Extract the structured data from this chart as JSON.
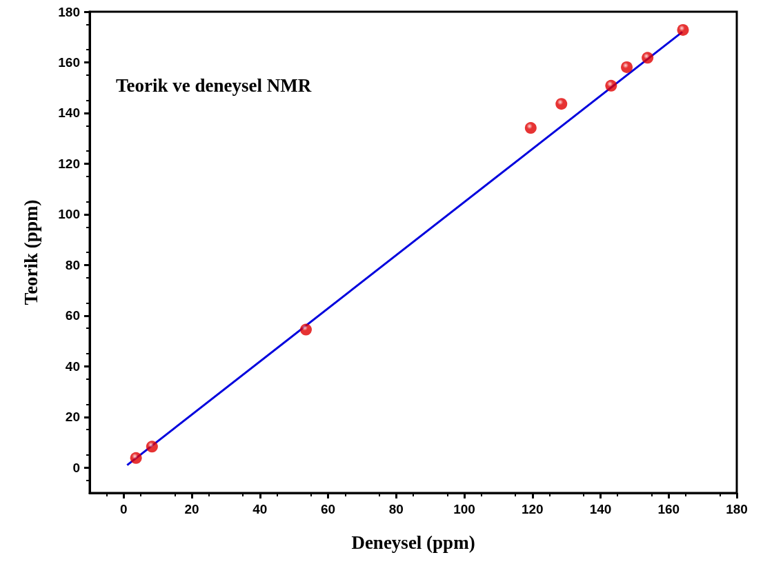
{
  "chart_data": {
    "type": "scatter",
    "xlabel": "Deneysel (ppm)",
    "ylabel": "Teorik (ppm)",
    "annotations": [
      "Teorik ve deneysel NMR"
    ],
    "xlim": [
      -10,
      180
    ],
    "xticks": [
      0,
      20,
      40,
      60,
      80,
      100,
      120,
      140,
      160,
      180
    ],
    "ylim": [
      -10,
      180
    ],
    "yticks": [
      0,
      20,
      40,
      60,
      80,
      100,
      120,
      140,
      160,
      180
    ],
    "grid": false,
    "marker": "circle",
    "series": [
      {
        "color": "#e00000",
        "x": [
          3.6,
          8.3,
          53.5,
          119.5,
          128.5,
          143.1,
          147.7,
          153.8,
          164.2
        ],
        "values": [
          3.8,
          8.3,
          54.5,
          134.1,
          143.6,
          150.8,
          158.1,
          161.8,
          172.8
        ]
      },
      {
        "type": "line",
        "color": "#0000dd",
        "x": [
          1,
          164
        ],
        "values": [
          1,
          172
        ],
        "marker": "none",
        "line_style": "solid"
      }
    ]
  }
}
